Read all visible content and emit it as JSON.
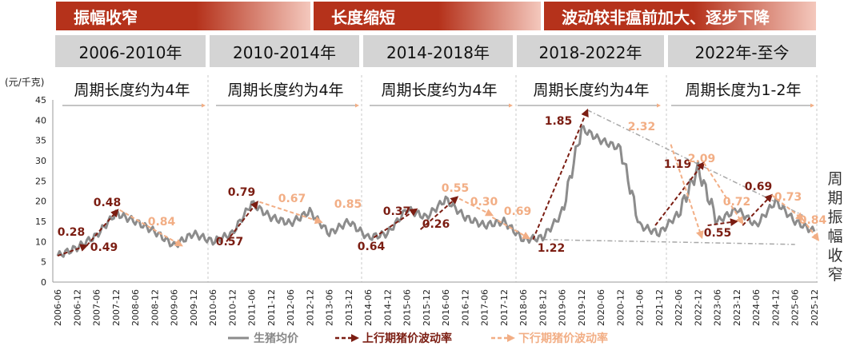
{
  "banners": [
    {
      "text": "振幅收窄",
      "left": 70,
      "width": 318
    },
    {
      "text": "长度缩短",
      "left": 392,
      "width": 284
    },
    {
      "text": "波动较非瘟前加大、逐步下降",
      "left": 680,
      "width": 340
    }
  ],
  "periods": [
    "2006-2010年",
    "2010-2014年",
    "2014-2018年",
    "2018-2022年",
    "2022年-至今"
  ],
  "notes": [
    "周期长度约为4年",
    "周期长度约为4年",
    "周期长度约为4年",
    "周期长度约为4年",
    "周期长度为1-2年"
  ],
  "side_text": "周期振幅收窄",
  "colors": {
    "banner_dark": "#b5321b",
    "banner_light": "#f4c8bd",
    "price": "#8c8c8c",
    "up": "#7b1d12",
    "down": "#f2ae85",
    "trend": "#a8a8a8"
  },
  "chart_data": {
    "type": "line",
    "ylabel": "(元/千克)",
    "ylim": [
      0,
      45
    ],
    "yticks": [
      0,
      5,
      10,
      15,
      20,
      25,
      30,
      35,
      40,
      45
    ],
    "x_labels": [
      "2006-06",
      "2006-12",
      "2007-06",
      "2007-12",
      "2008-06",
      "2008-12",
      "2009-06",
      "2009-12",
      "2010-06",
      "2010-12",
      "2011-06",
      "2011-12",
      "2012-06",
      "2012-12",
      "2013-06",
      "2013-12",
      "2014-06",
      "2014-12",
      "2015-06",
      "2015-12",
      "2016-06",
      "2016-12",
      "2017-06",
      "2017-12",
      "2018-06",
      "2018-12",
      "2019-06",
      "2019-12",
      "2020-06",
      "2020-12",
      "2021-06",
      "2021-12",
      "2022-06",
      "2022-12",
      "2023-06",
      "2023-12",
      "2024-06",
      "2024-12",
      "2025-06",
      "2025-12"
    ],
    "series": [
      {
        "name": "生猪均价",
        "values": [
          6.5,
          8.5,
          11.5,
          17,
          15,
          12.5,
          9,
          12,
          10,
          12,
          19.5,
          16,
          14.5,
          17.5,
          12,
          15,
          11,
          12,
          18,
          16,
          20.5,
          16,
          14,
          15,
          10.5,
          11,
          17,
          38,
          35,
          33,
          14,
          12,
          17,
          28,
          15,
          18,
          14,
          20,
          15,
          12.5
        ]
      },
      {
        "name": "上行期猪价波动率"
      },
      {
        "name": "下行期猪价波动率"
      }
    ],
    "up_labels": [
      "0.28",
      "0.48",
      "0.49",
      "0.79",
      "0.57",
      "0.37",
      "0.64",
      "0.26",
      "1.85",
      "1.22",
      "1.19",
      "0.55",
      "0.69"
    ],
    "down_labels": [
      "0.84",
      "0.67",
      "0.85",
      "0.55",
      "0.30",
      "0.69",
      "2.32",
      "2.09",
      "0.72",
      "0.73",
      "0.84"
    ]
  }
}
